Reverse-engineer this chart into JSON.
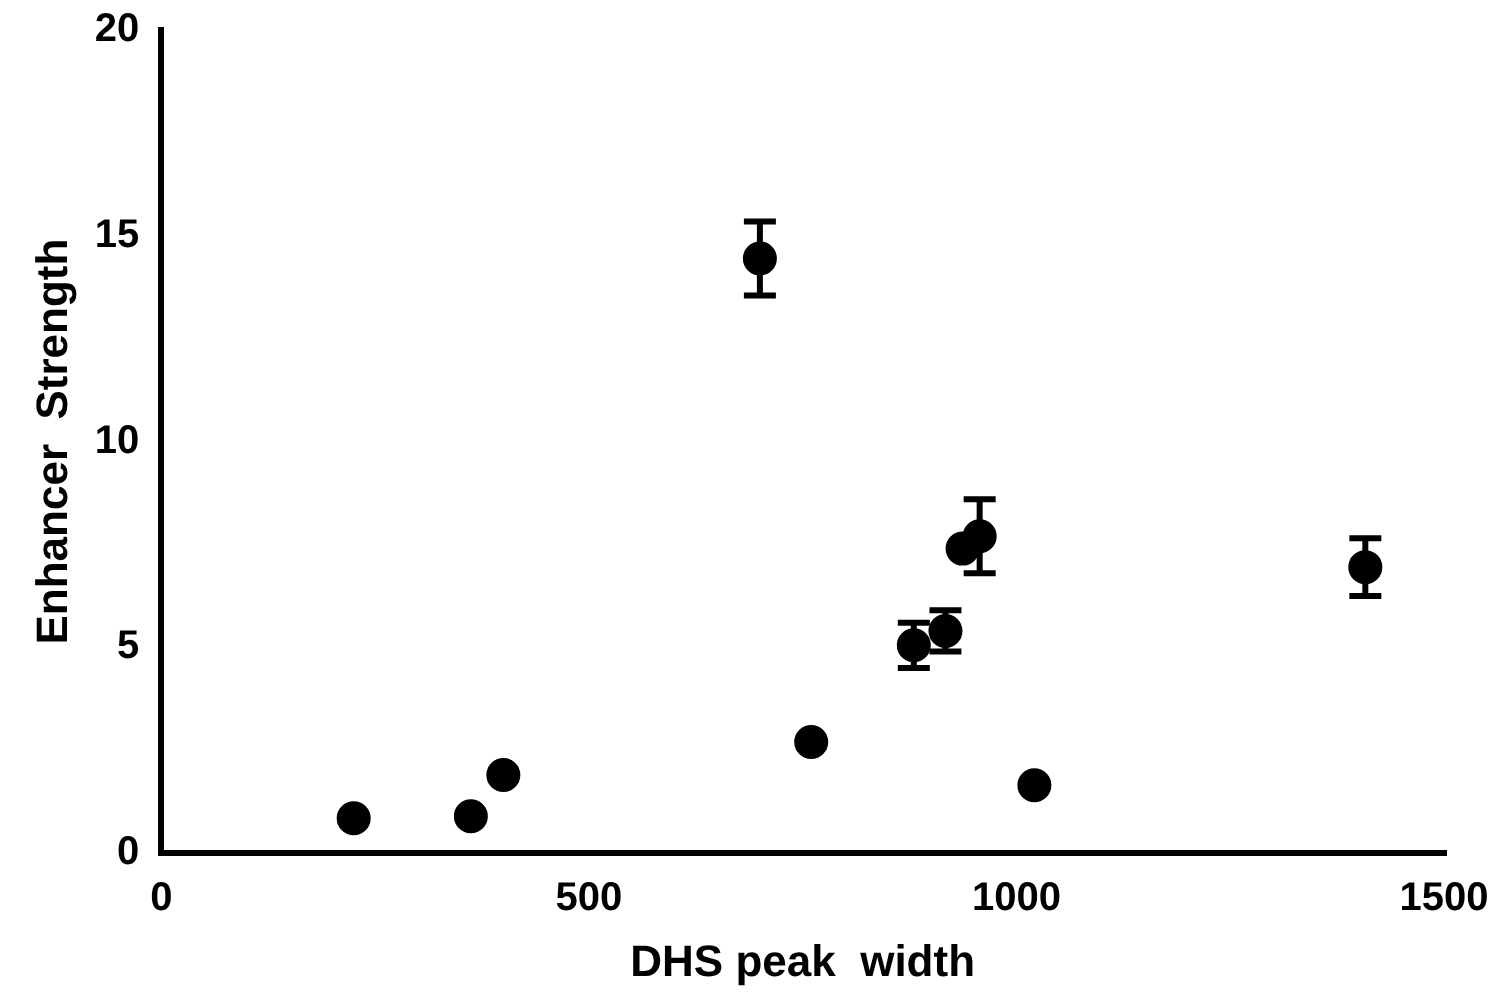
{
  "chart_data": {
    "type": "scatter",
    "xlabel": "DHS peak  width",
    "ylabel": "Enhancer  Strength",
    "x": [
      225,
      362,
      400,
      700,
      760,
      880,
      917,
      937,
      957,
      1021,
      1408
    ],
    "values": [
      0.85,
      0.9,
      1.9,
      14.45,
      2.7,
      5.05,
      5.4,
      7.4,
      7.7,
      1.65,
      6.95
    ],
    "errors": [
      null,
      null,
      null,
      0.9,
      null,
      0.55,
      0.5,
      null,
      0.9,
      null,
      0.7
    ],
    "color": "#000000",
    "marker": "circle",
    "xlim": [
      0,
      1500
    ],
    "xticks": [
      0,
      500,
      1000,
      1500
    ],
    "ylim": [
      0,
      20
    ],
    "yticks": [
      0,
      5,
      10,
      15,
      20
    ],
    "grid": false,
    "legend": false
  }
}
